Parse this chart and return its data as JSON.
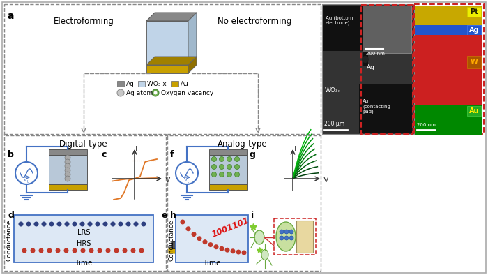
{
  "fig_width": 7.0,
  "fig_height": 3.94,
  "dpi": 100,
  "bg_color": "#ffffff",
  "panel_a_label": "a",
  "panel_b_label": "b",
  "panel_c_label": "c",
  "panel_d_label": "d",
  "panel_e_label": "e",
  "panel_f_label": "f",
  "panel_g_label": "g",
  "panel_h_label": "h",
  "panel_i_label": "i",
  "electroforming_text": "Electroforming",
  "no_electroforming_text": "No electroforming",
  "digital_type_text": "Digital-type",
  "analog_type_text": "Analog-type",
  "legend_ag": "Ag",
  "legend_wo3": "WO₃ x",
  "legend_au": "Au",
  "legend_ag_atom": "Ag atom",
  "legend_oxy": "Oxygen vacancy",
  "lrs_text": "LRS",
  "hrs_text": "HRS",
  "conductance_text": "Conductance",
  "time_text": "Time",
  "binary_text": "1001101",
  "box_blue_color": "#4472c4",
  "lrs_dot_color": "#2e4080",
  "hrs_dot_color": "#c0392b",
  "analog_dot_color": "#c0392b",
  "orange_color": "#e07828",
  "green_dark": "#1a5c1a",
  "green_mid": "#2d8b2d",
  "green_light": "#4ab84a",
  "blue_circuit": "#4472c4",
  "ag_color": "#909090",
  "wo3_color": "#b8cee0",
  "au_color": "#c8a000",
  "wo3x_label": "WO₃ₓ",
  "v_label": "V",
  "i_label": "I",
  "scale_200um": "200 μm",
  "scale_200nm": "200 nm",
  "au_bottom": "Au (bottom\nelectrode)",
  "ag_label": "Ag",
  "wo3x_sem": "WO₃ₓ",
  "au_contact": "Au\n(contacting\npad)",
  "pt_label": "Pt",
  "ag_eds_label": "Ag",
  "w_label": "W",
  "au_eds_label": "Au"
}
